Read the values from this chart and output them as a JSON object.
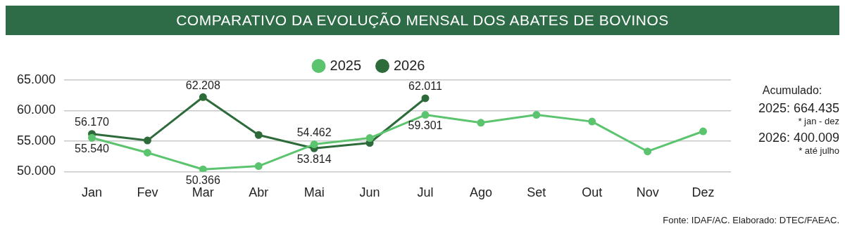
{
  "chart_data": {
    "type": "line",
    "title": "COMPARATIVO DA EVOLUÇÃO MENSAL DOS ABATES DE BOVINOS",
    "categories": [
      "Jan",
      "Fev",
      "Mar",
      "Abr",
      "Mai",
      "Jun",
      "Jul",
      "Ago",
      "Set",
      "Out",
      "Nov",
      "Dez"
    ],
    "series": [
      {
        "name": "2025",
        "color": "#5cc46f",
        "values": [
          55540,
          53100,
          50366,
          50900,
          54462,
          55500,
          59301,
          58000,
          59300,
          58200,
          53300,
          56600
        ],
        "value_labels": [
          "55.540",
          null,
          "50.366",
          null,
          "54.462",
          null,
          "59.301",
          null,
          null,
          null,
          null,
          null
        ]
      },
      {
        "name": "2026",
        "color": "#2e6b3a",
        "values": [
          56170,
          55100,
          62208,
          56000,
          53814,
          54700,
          62011,
          null,
          null,
          null,
          null,
          null
        ],
        "value_labels": [
          "56.170",
          null,
          "62.208",
          null,
          "53.814",
          null,
          "62.011",
          null,
          null,
          null,
          null,
          null
        ]
      }
    ],
    "ylim": [
      50000,
      65000
    ],
    "yticks": [
      {
        "value": 50000,
        "label": "50.000"
      },
      {
        "value": 55000,
        "label": "55.000"
      },
      {
        "value": 60000,
        "label": "60.000"
      },
      {
        "value": 65000,
        "label": "65.000"
      }
    ],
    "grid": "y",
    "legend": "top",
    "marker": "circle",
    "line_style": "solid",
    "annotations": [
      "Acumulado:",
      "2025: 664.435",
      "* jan - dez",
      "2026: 400.009",
      "* até julho",
      "Fonte: IDAF/AC. Elaborado: DTEC/FAEAC."
    ]
  }
}
